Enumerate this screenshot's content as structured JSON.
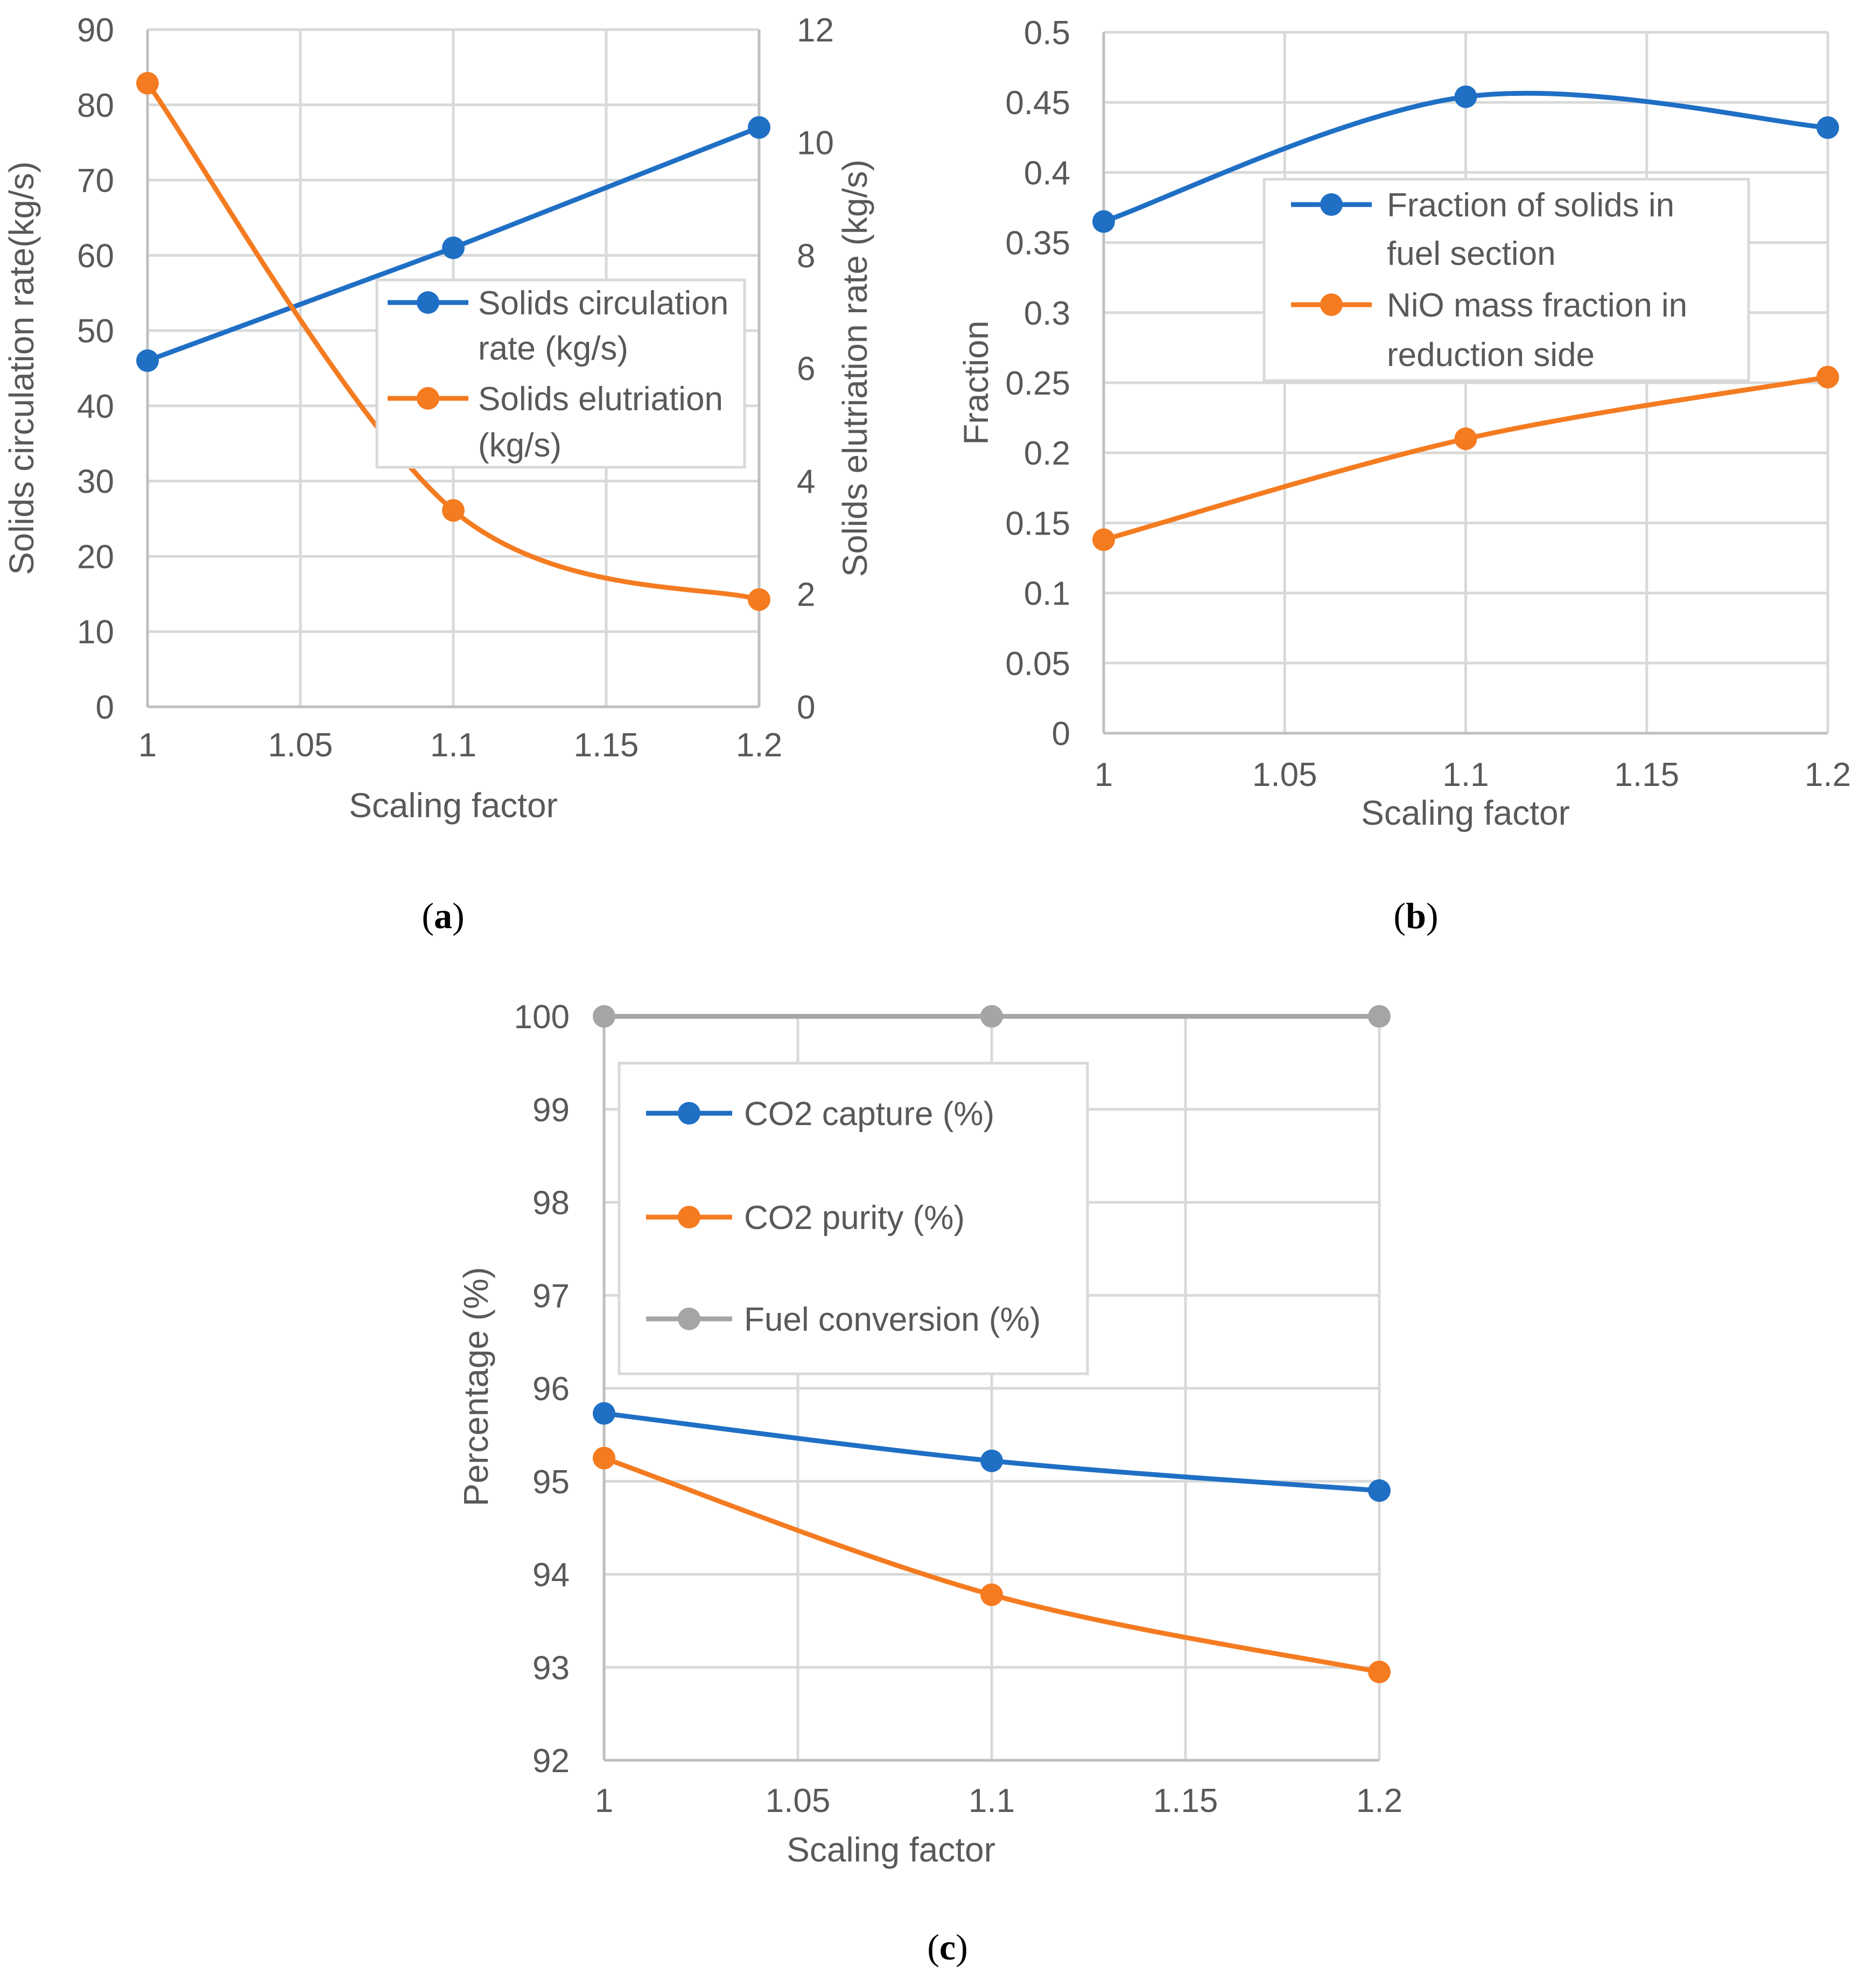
{
  "chart_data": [
    {
      "id": "a",
      "type": "line",
      "caption": "a",
      "xlabel": "Scaling factor",
      "ylabel": "Solids circulation rate(kg/s)",
      "y2label": "Solids elutriation rate (kg/s)",
      "xlim": [
        1,
        1.2
      ],
      "ylim": [
        0,
        90
      ],
      "y2lim": [
        0,
        12
      ],
      "xticks": [
        "1",
        "1.05",
        "1.1",
        "1.15",
        "1.2"
      ],
      "yticks": [
        "0",
        "10",
        "20",
        "30",
        "40",
        "50",
        "60",
        "70",
        "80",
        "90"
      ],
      "y2ticks": [
        "0",
        "2",
        "4",
        "6",
        "8",
        "10",
        "12"
      ],
      "legend_position": "center-right",
      "series": [
        {
          "name": "Solids circulation rate (kg/s)",
          "legend_lines": [
            "Solids circulation",
            "rate (kg/s)"
          ],
          "color": "#1f6fc5",
          "axis": "left",
          "x": [
            1,
            1.1,
            1.2
          ],
          "y": [
            46,
            61,
            77
          ],
          "smooth": false
        },
        {
          "name": "Solids elutriation (kg/s)",
          "legend_lines": [
            "Solids elutriation",
            "(kg/s)"
          ],
          "color": "#f47b20",
          "axis": "right",
          "x": [
            1,
            1.1,
            1.2
          ],
          "y": [
            11.05,
            3.48,
            1.9
          ],
          "smooth": true
        }
      ]
    },
    {
      "id": "b",
      "type": "line",
      "caption": "b",
      "xlabel": "Scaling factor",
      "ylabel": "Fraction",
      "xlim": [
        1,
        1.2
      ],
      "ylim": [
        0,
        0.5
      ],
      "xticks": [
        "1",
        "1.05",
        "1.1",
        "1.15",
        "1.2"
      ],
      "yticks": [
        "0",
        "0.05",
        "0.1",
        "0.15",
        "0.2",
        "0.25",
        "0.3",
        "0.35",
        "0.4",
        "0.45",
        "0.5"
      ],
      "legend_position": "top-right",
      "series": [
        {
          "name": "Fraction of solids in fuel section",
          "legend_lines": [
            "Fraction of solids in",
            "fuel section"
          ],
          "color": "#1f6fc5",
          "axis": "left",
          "x": [
            1,
            1.1,
            1.2
          ],
          "y": [
            0.365,
            0.454,
            0.432
          ],
          "smooth": true
        },
        {
          "name": "NiO mass fraction in reduction side",
          "legend_lines": [
            "NiO mass fraction  in",
            "reduction side"
          ],
          "color": "#f47b20",
          "axis": "left",
          "x": [
            1,
            1.1,
            1.2
          ],
          "y": [
            0.138,
            0.21,
            0.254
          ],
          "smooth": true
        }
      ]
    },
    {
      "id": "c",
      "type": "line",
      "caption": "c",
      "xlabel": "Scaling factor",
      "ylabel": "Percentage (%)",
      "xlim": [
        1,
        1.2
      ],
      "ylim": [
        92,
        100
      ],
      "xticks": [
        "1",
        "1.05",
        "1.1",
        "1.15",
        "1.2"
      ],
      "yticks": [
        "92",
        "93",
        "94",
        "95",
        "96",
        "97",
        "98",
        "99",
        "100"
      ],
      "legend_position": "top-left",
      "series": [
        {
          "name": "CO2 capture (%)",
          "legend_lines": [
            "CO2 capture (%)"
          ],
          "color": "#1f6fc5",
          "axis": "left",
          "x": [
            1,
            1.1,
            1.2
          ],
          "y": [
            95.73,
            95.22,
            94.9
          ],
          "smooth": true
        },
        {
          "name": "CO2 purity (%)",
          "legend_lines": [
            "CO2 purity (%)"
          ],
          "color": "#f47b20",
          "axis": "left",
          "x": [
            1,
            1.1,
            1.2
          ],
          "y": [
            95.25,
            93.78,
            92.95
          ],
          "smooth": true
        },
        {
          "name": "Fuel conversion (%)",
          "legend_lines": [
            "Fuel conversion (%)"
          ],
          "color": "#a5a5a5",
          "axis": "left",
          "x": [
            1,
            1.1,
            1.2
          ],
          "y": [
            100,
            100,
            100
          ],
          "smooth": false
        }
      ]
    }
  ]
}
